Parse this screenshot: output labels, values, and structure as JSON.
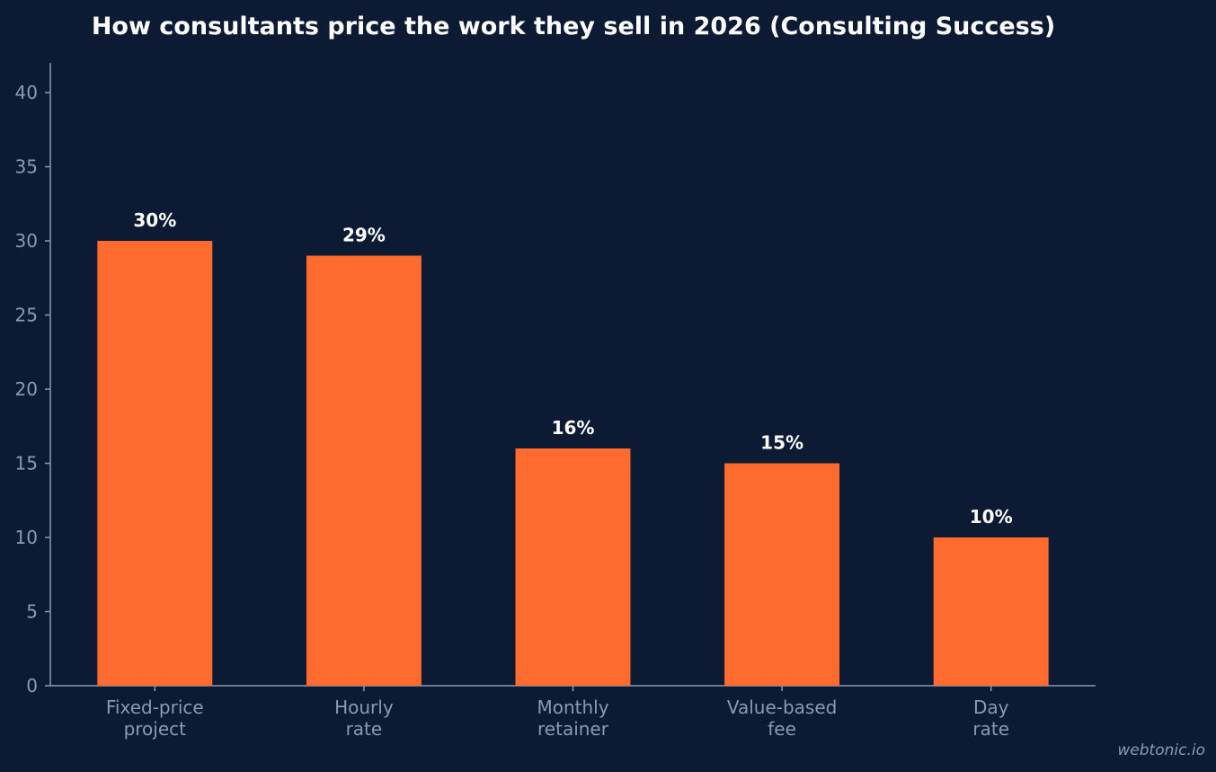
{
  "chart_data": {
    "type": "bar",
    "title": "How consultants price the work they sell in 2026 (Consulting Success)",
    "categories": [
      [
        "Fixed-price",
        "project"
      ],
      [
        "Hourly",
        "rate"
      ],
      [
        "Monthly",
        "retainer"
      ],
      [
        "Value-based",
        "fee"
      ],
      [
        "Day",
        "rate"
      ]
    ],
    "values": [
      30,
      29,
      16,
      15,
      10
    ],
    "data_labels": [
      "30%",
      "29%",
      "16%",
      "15%",
      "10%"
    ],
    "xlabel": "",
    "ylabel": "",
    "ylim": [
      0,
      42
    ],
    "yticks": [
      0,
      5,
      10,
      15,
      20,
      25,
      30,
      35,
      40
    ],
    "grid": false,
    "legend": "none",
    "colors": {
      "background": "#0c1b33",
      "bar": "#ff6b2e",
      "axis": "#8a9ab5",
      "title": "#ffffff",
      "data_label": "#ffffff"
    }
  },
  "watermark": "webtonic.io"
}
